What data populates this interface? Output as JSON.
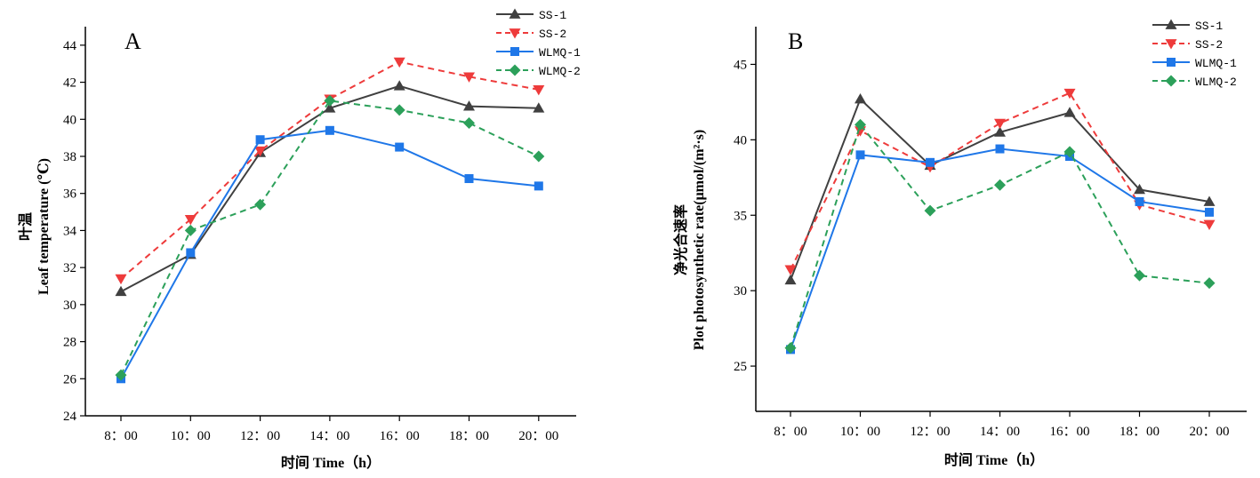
{
  "chart_data": [
    {
      "type": "line",
      "panel_label": "A",
      "categories": [
        "8：00",
        "10：00",
        "12：00",
        "14：00",
        "16：00",
        "18：00",
        "20：00"
      ],
      "xlabel": "时间 Time（h）",
      "ylabel_cn": "叶温",
      "ylabel_en": "Leaf temperature (℃)",
      "ylim": [
        24,
        45
      ],
      "yticks": [
        24,
        26,
        28,
        30,
        32,
        34,
        36,
        38,
        40,
        42,
        44
      ],
      "legend_position": "top-right",
      "grid": false,
      "series": [
        {
          "name": "SS-1",
          "values": [
            30.7,
            32.7,
            38.2,
            40.6,
            41.8,
            40.7,
            40.6
          ],
          "color": "#404040",
          "marker": "triangle-up",
          "dash": false
        },
        {
          "name": "SS-2",
          "values": [
            31.4,
            34.6,
            38.3,
            41.1,
            43.1,
            42.3,
            41.6
          ],
          "color": "#ee3b3b",
          "marker": "triangle-down",
          "dash": true
        },
        {
          "name": "WLMQ-1",
          "values": [
            26.0,
            32.8,
            38.9,
            39.4,
            38.5,
            36.8,
            36.4
          ],
          "color": "#1f77e8",
          "marker": "square",
          "dash": false
        },
        {
          "name": "WLMQ-2",
          "values": [
            26.2,
            34.0,
            35.4,
            41.0,
            40.5,
            39.8,
            38.0
          ],
          "color": "#2ca05a",
          "marker": "diamond",
          "dash": true
        }
      ]
    },
    {
      "type": "line",
      "panel_label": "B",
      "categories": [
        "8：00",
        "10：00",
        "12：00",
        "14：00",
        "16：00",
        "18：00",
        "20：00"
      ],
      "xlabel": "时间 Time（h）",
      "ylabel_cn": "净光合速率",
      "ylabel_en": "Plot photosynthetic rate(μmol/(m²·s)",
      "ylim": [
        22,
        47.5
      ],
      "yticks": [
        25,
        30,
        35,
        40,
        45
      ],
      "legend_position": "top-right",
      "grid": false,
      "series": [
        {
          "name": "SS-1",
          "values": [
            30.7,
            42.7,
            38.3,
            40.5,
            41.8,
            36.7,
            35.9
          ],
          "color": "#404040",
          "marker": "triangle-up",
          "dash": false
        },
        {
          "name": "SS-2",
          "values": [
            31.4,
            40.6,
            38.2,
            41.1,
            43.1,
            35.7,
            34.4
          ],
          "color": "#ee3b3b",
          "marker": "triangle-down",
          "dash": true
        },
        {
          "name": "WLMQ-1",
          "values": [
            26.1,
            39.0,
            38.5,
            39.4,
            38.9,
            35.9,
            35.2
          ],
          "color": "#1f77e8",
          "marker": "square",
          "dash": false
        },
        {
          "name": "WLMQ-2",
          "values": [
            26.2,
            41.0,
            35.3,
            37.0,
            39.2,
            31.0,
            30.5
          ],
          "color": "#2ca05a",
          "marker": "diamond",
          "dash": true
        }
      ]
    }
  ]
}
